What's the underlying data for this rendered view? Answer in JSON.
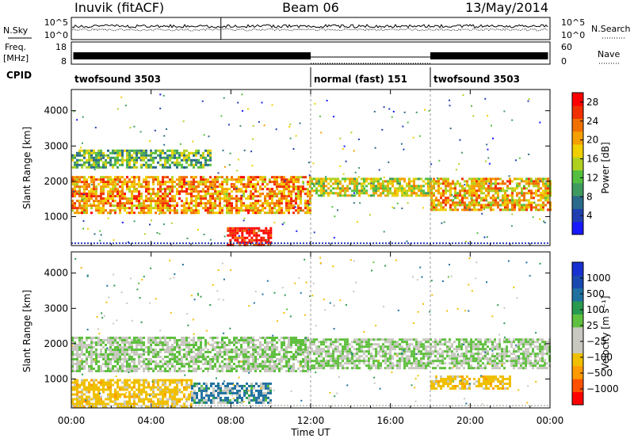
{
  "header": {
    "station": "Inuvik (fitACF)",
    "beam": "Beam 06",
    "date": "13/May/2014"
  },
  "strips": {
    "nsky_label": "N.Sky",
    "nsearch_label": "N.Search",
    "noise_ticks": [
      "10^5",
      "10^0"
    ],
    "freq_label_top": "Freq.",
    "freq_label_unit": "[MHz]",
    "freq_ticks": [
      "18",
      "8"
    ],
    "nave_label": "Nave",
    "nave_ticks": [
      "60",
      "0"
    ],
    "cpid_label": "CPID"
  },
  "colors": {
    "power": [
      "#1818ff",
      "#1f3fb0",
      "#2a6a8a",
      "#3f9a60",
      "#55c040",
      "#b0d020",
      "#f0d000",
      "#f5a000",
      "#f07000",
      "#f03000",
      "#ff0000"
    ],
    "velocity": [
      "#ff0000",
      "#ff5000",
      "#ff9a00",
      "#f0c000",
      "#c8c8c0",
      "#c8c8c0",
      "#60c040",
      "#2a9a50",
      "#2070a0",
      "#1848b0",
      "#1830d0"
    ]
  },
  "chart_data": [
    {
      "type": "table",
      "name": "cpid_modes",
      "segments": [
        {
          "start": "00:00",
          "end": "12:00",
          "label": "twofsound 3503"
        },
        {
          "start": "12:00",
          "end": "18:00",
          "label": "normal (fast) 151"
        },
        {
          "start": "18:00",
          "end": "24:00",
          "label": "twofsound 3503"
        }
      ]
    },
    {
      "type": "heatmap",
      "name": "power",
      "ylabel": "Slant Range [km]",
      "yticks": [
        "1000",
        "2000",
        "3000",
        "4000"
      ],
      "ylim": [
        180,
        4600
      ],
      "xlim": [
        "00:00",
        "24:00"
      ],
      "colorbar": {
        "label": "Power [dB]",
        "ticks": [
          "4",
          "8",
          "12",
          "16",
          "20",
          "24",
          "28"
        ],
        "range": [
          0,
          30
        ]
      },
      "bands": [
        {
          "t0": 0,
          "t1": 12,
          "r0": 1100,
          "r1": 2150,
          "value": 22
        },
        {
          "t0": 0,
          "t1": 7,
          "r0": 2400,
          "r1": 2900,
          "value": 12
        },
        {
          "t0": 12,
          "t1": 18,
          "r0": 1600,
          "r1": 2100,
          "value": 16
        },
        {
          "t0": 18,
          "t1": 24,
          "r0": 1200,
          "r1": 2100,
          "value": 20
        },
        {
          "t0": 7.8,
          "t1": 10,
          "r0": 180,
          "r1": 700,
          "value": 30
        }
      ]
    },
    {
      "type": "heatmap",
      "name": "velocity",
      "xlabel": "Time UT",
      "ylabel": "Slant Range [km]",
      "xticks": [
        "00:00",
        "04:00",
        "08:00",
        "12:00",
        "16:00",
        "20:00",
        "00:00"
      ],
      "yticks": [
        "1000",
        "2000",
        "3000",
        "4000"
      ],
      "ylim": [
        180,
        4600
      ],
      "xlim": [
        "00:00",
        "24:00"
      ],
      "colorbar": {
        "label": "Velocity [m s⁻¹]",
        "ticks": [
          "1000",
          "500",
          "100",
          "25",
          "−25",
          "−100",
          "−500",
          "−1000"
        ]
      },
      "bands": [
        {
          "t0": 0,
          "t1": 12,
          "r0": 1200,
          "r1": 2200,
          "value": 0
        },
        {
          "t0": 12,
          "t1": 24,
          "r0": 1300,
          "r1": 2150,
          "value": 0
        },
        {
          "t0": 0,
          "t1": 6,
          "r0": 200,
          "r1": 1000,
          "value": -300
        },
        {
          "t0": 6,
          "t1": 10,
          "r0": 300,
          "r1": 900,
          "value": 150
        },
        {
          "t0": 18,
          "t1": 22,
          "r0": 700,
          "r1": 1100,
          "value": -300
        }
      ]
    }
  ]
}
